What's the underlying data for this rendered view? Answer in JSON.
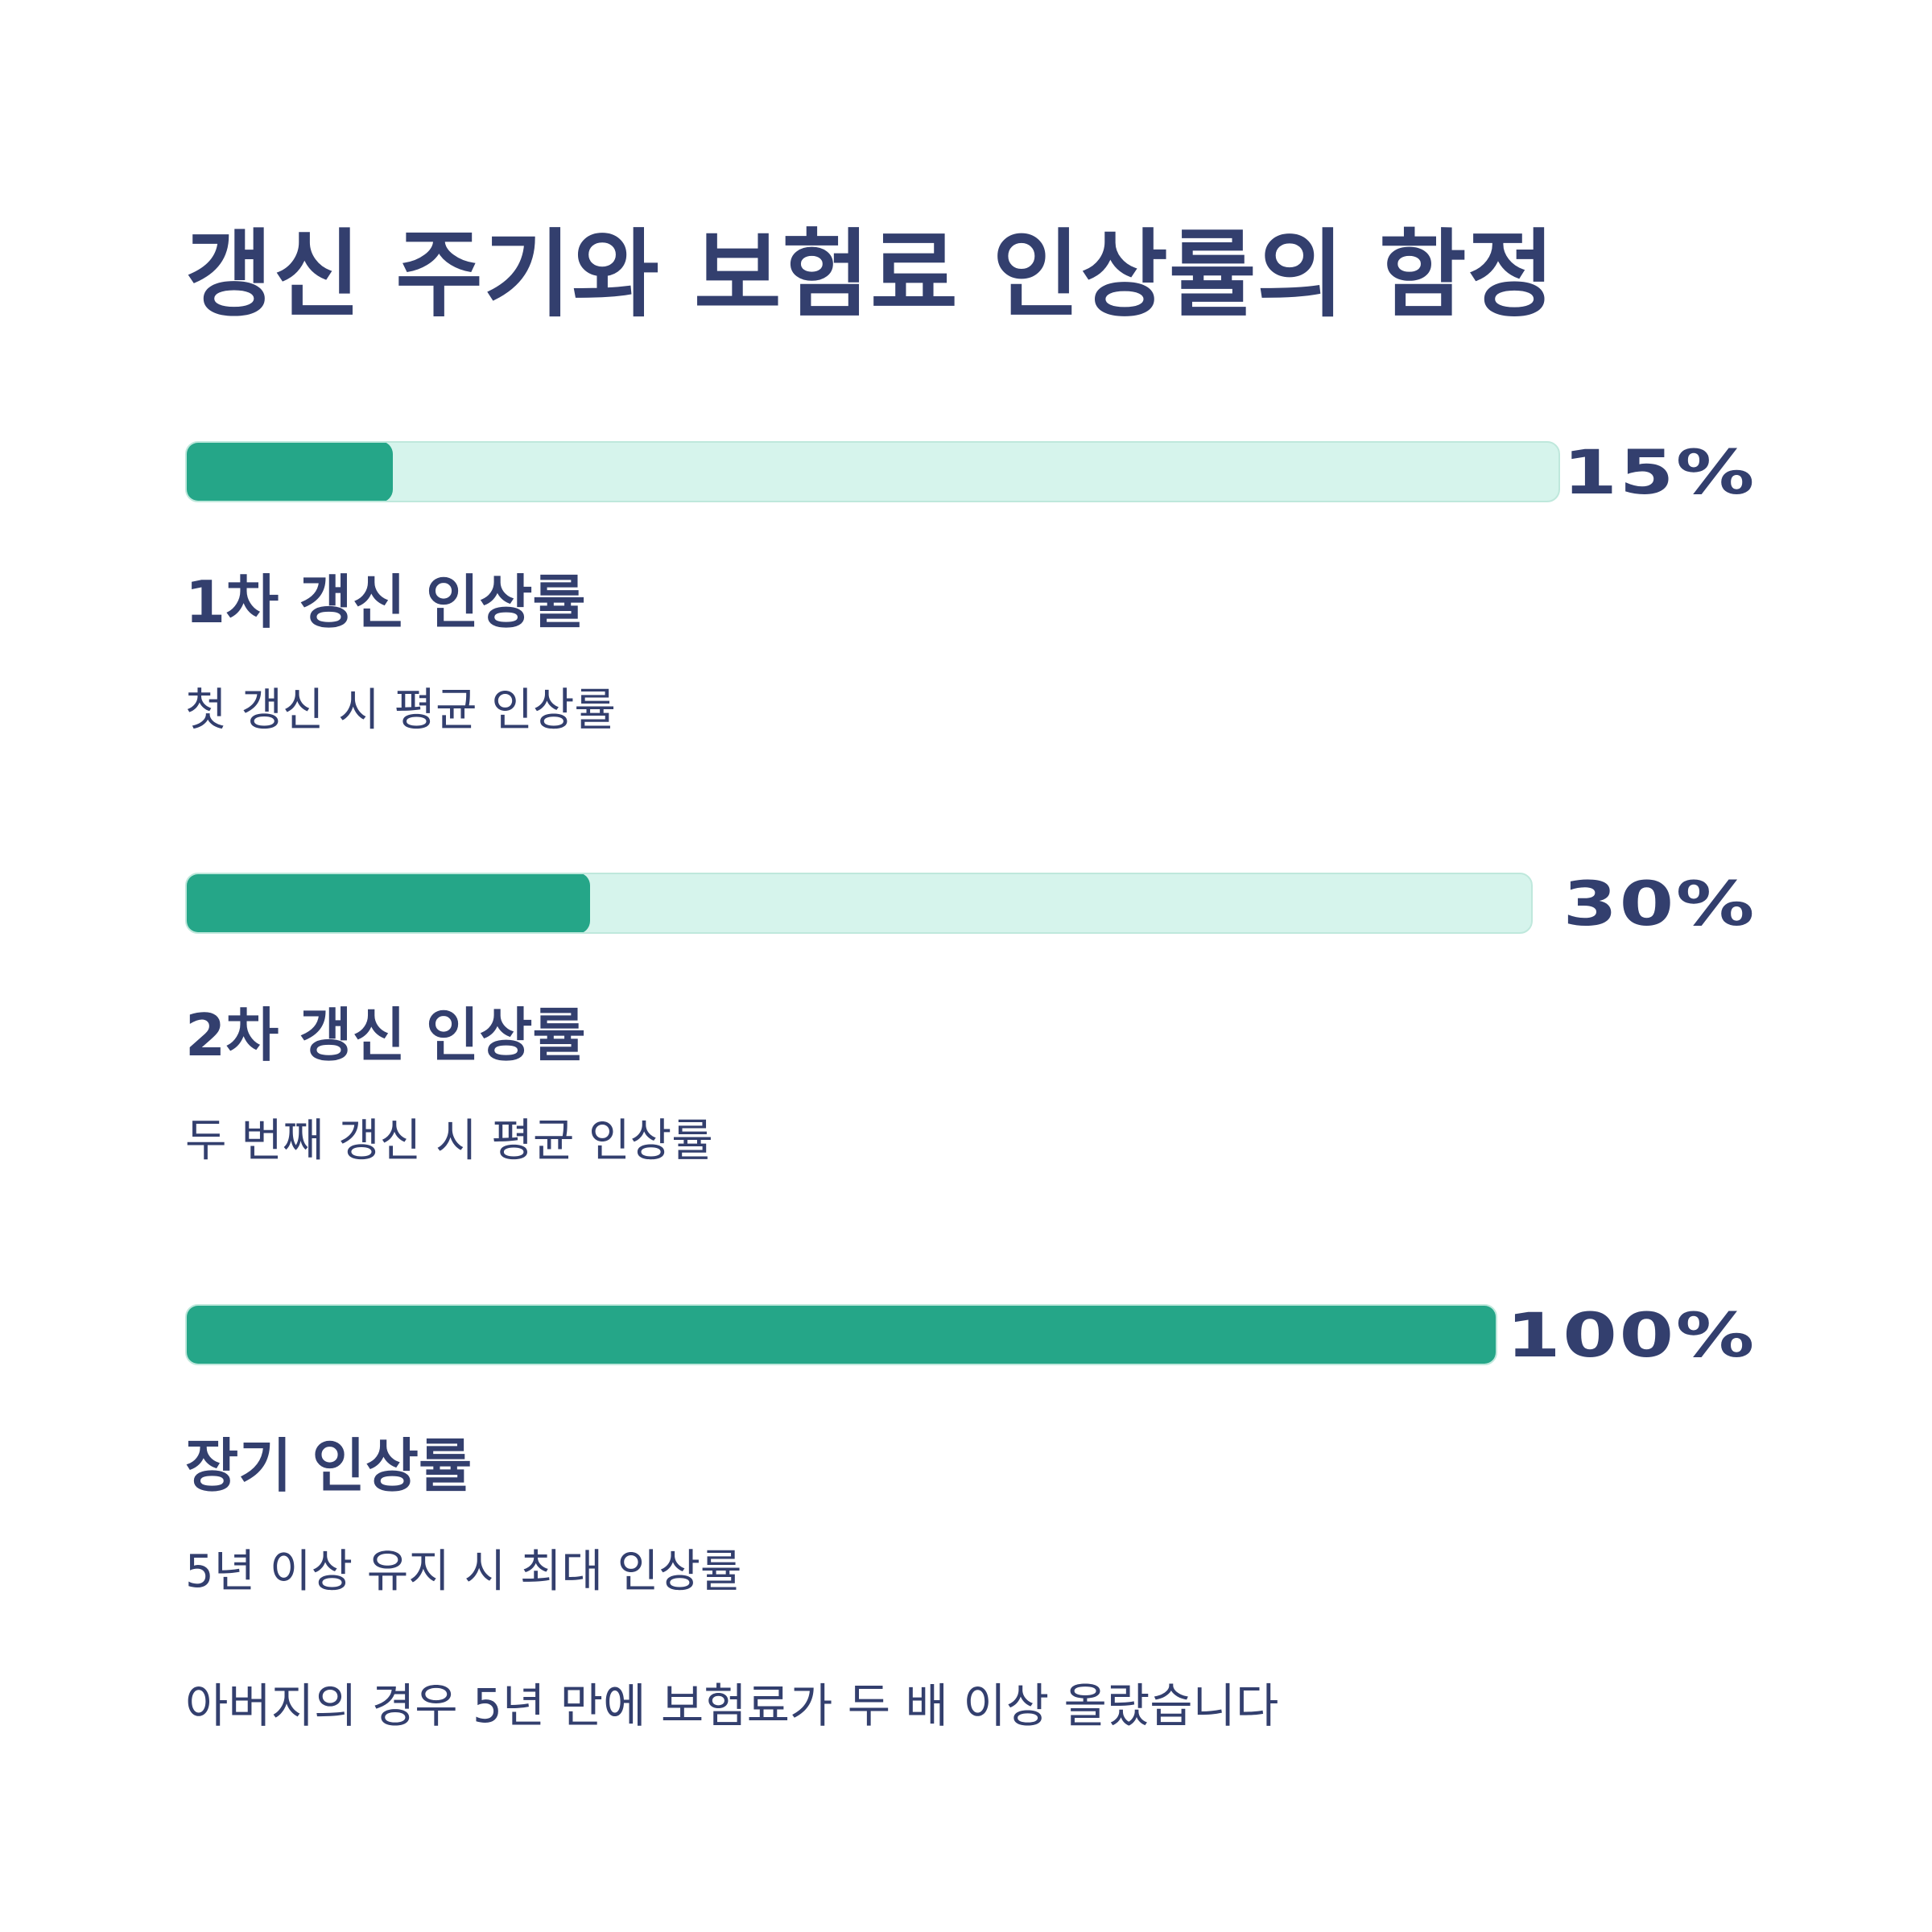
{
  "title": "갱신 주기와 보험료 인상률의 함정",
  "colors": {
    "text": "#333f6e",
    "bar_fill": "#25a688",
    "bar_track": "#d6f4ec"
  },
  "chart_data": {
    "type": "bar",
    "orientation": "horizontal",
    "unit": "%",
    "title": "갱신 주기와 보험료 인상률의 함정",
    "categories": [
      "1차 갱신 인상률",
      "2차 갱신 인상률",
      "장기 인상률"
    ],
    "values": [
      15,
      30,
      100
    ],
    "xlim": [
      0,
      100
    ],
    "grid": false,
    "bars": [
      {
        "value": 15,
        "value_label": "15%",
        "label": "1차 갱신 인상률",
        "description": "첫 갱신 시 평균 인상률"
      },
      {
        "value": 30,
        "value_label": "30%",
        "label": "2차 갱신 인상률",
        "description": "두 번째 갱신 시 평균 인상률"
      },
      {
        "value": 100,
        "value_label": "100%",
        "label": "장기 인상률",
        "description": "5년 이상 유지 시 최대 인상률"
      }
    ]
  },
  "note": "아버지의 경우 5년 만에 보험료가 두 배 이상 올랐습니다"
}
